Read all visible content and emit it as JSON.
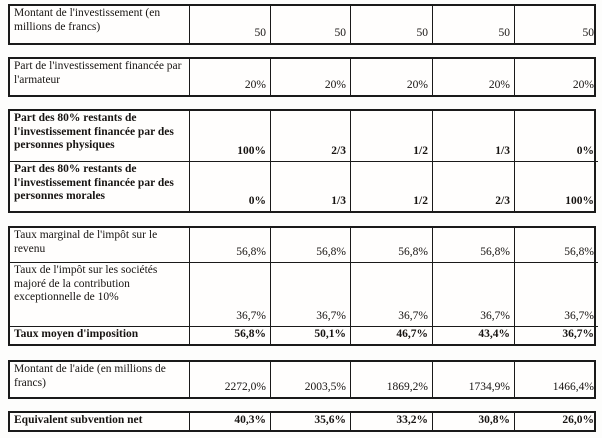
{
  "document": {
    "table": {
      "blocks": [
        {
          "rows": [
            {
              "label": "Montant de l'investissement (en millions de francs)",
              "values": [
                "50",
                "50",
                "50",
                "50",
                "50"
              ],
              "bold": false
            }
          ]
        },
        {
          "rows": [
            {
              "label": "Part de l'investissement financée par l'armateur",
              "values": [
                "20%",
                "20%",
                "20%",
                "20%",
                "20%"
              ],
              "bold": false
            }
          ]
        },
        {
          "rows": [
            {
              "label": "Part des 80% restants de l'investissement financée par des personnes physiques",
              "values": [
                "100%",
                "2/3",
                "1/2",
                "1/3",
                "0%"
              ],
              "bold": true
            },
            {
              "label": "Part des 80% restants de l'investissement financée par des personnes morales",
              "values": [
                "0%",
                "1/3",
                "1/2",
                "2/3",
                "100%"
              ],
              "bold": true
            }
          ]
        },
        {
          "rows": [
            {
              "label": "Taux marginal de l'impôt sur le revenu",
              "values": [
                "56,8%",
                "56,8%",
                "56,8%",
                "56,8%",
                "56,8%"
              ],
              "bold": false
            },
            {
              "label": "Taux de l'impôt sur les sociétés majoré de la contribution exceptionnelle de 10%",
              "values": [
                "36,7%",
                "36,7%",
                "36,7%",
                "36,7%",
                "36,7%"
              ],
              "bold": false
            },
            {
              "label": "Taux moyen d'imposition",
              "values": [
                "56,8%",
                "50,1%",
                "46,7%",
                "43,4%",
                "36,7%"
              ],
              "bold": true
            }
          ]
        },
        {
          "rows": [
            {
              "label": "Montant de l'aide (en millions de francs)",
              "values": [
                "2272,0%",
                "2003,5%",
                "1869,2%",
                "1734,9%",
                "1466,4%"
              ],
              "bold": false
            }
          ]
        },
        {
          "rows": [
            {
              "label": "Equivalent subvention net",
              "values": [
                "40,3%",
                "35,6%",
                "33,2%",
                "30,8%",
                "26,0%"
              ],
              "bold": true
            }
          ]
        }
      ]
    }
  }
}
